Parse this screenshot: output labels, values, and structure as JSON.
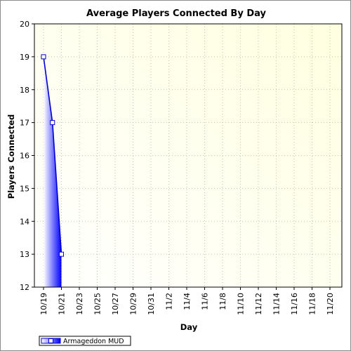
{
  "chart_data": {
    "type": "area",
    "title": "Average Players Connected By Day",
    "xlabel": "Day",
    "ylabel": "Players Connected",
    "x_tick_labels": [
      "10/19",
      "10/21",
      "10/23",
      "10/25",
      "10/27",
      "10/29",
      "10/31",
      "11/2",
      "11/4",
      "11/6",
      "11/8",
      "11/10",
      "11/12",
      "11/14",
      "11/16",
      "11/18",
      "11/20"
    ],
    "y_ticks": [
      12,
      13,
      14,
      15,
      16,
      17,
      18,
      19,
      20
    ],
    "ylim": [
      12,
      20
    ],
    "grid": true,
    "legend_position": "bottom-left",
    "series": [
      {
        "name": "Armageddon MUD",
        "x": [
          "10/19",
          "10/20",
          "10/21"
        ],
        "values": [
          19,
          17,
          13
        ]
      }
    ],
    "colors": {
      "line": "#0000cc",
      "fill_dark": "#0000ff",
      "fill_light": "#ffffff",
      "plot_bg_light": "#ffffe0",
      "plot_bg_white": "#ffffff",
      "grid": "#b4b4a0"
    },
    "marker": "square"
  }
}
